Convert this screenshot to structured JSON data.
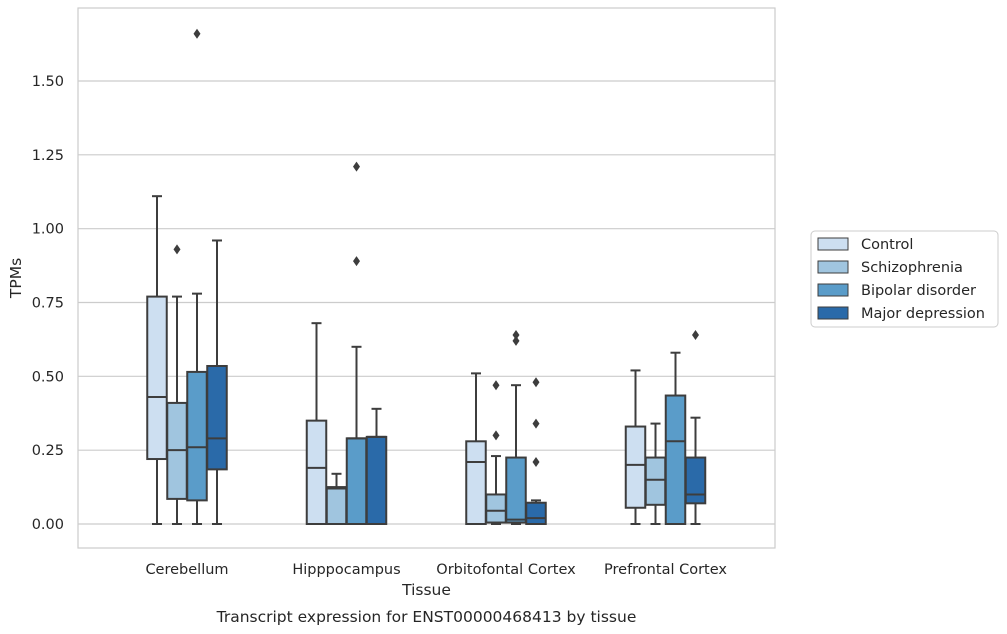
{
  "chart_data": {
    "type": "box",
    "title": "",
    "caption": "Transcript expression for ENST00000468413 by tissue",
    "xlabel": "Tissue",
    "ylabel": "TPMs",
    "ylim": [
      -0.08,
      1.74
    ],
    "yticks": [
      0.0,
      0.25,
      0.5,
      0.75,
      1.0,
      1.25,
      1.5
    ],
    "ytick_labels": [
      "0.00",
      "0.25",
      "0.50",
      "0.75",
      "1.00",
      "1.25",
      "1.50"
    ],
    "grid": true,
    "legend_position": "right",
    "categories": [
      "Cerebellum",
      "Hipppocampus",
      "Orbitofontal Cortex",
      "Prefrontal Cortex"
    ],
    "series": [
      {
        "name": "Control",
        "color": "#cddff1",
        "boxes": [
          {
            "q1": 0.22,
            "median": 0.43,
            "q3": 0.77,
            "whisker_low": 0.0,
            "whisker_high": 1.11,
            "outliers": []
          },
          {
            "q1": 0.0,
            "median": 0.19,
            "q3": 0.35,
            "whisker_low": 0.0,
            "whisker_high": 0.68,
            "outliers": []
          },
          {
            "q1": 0.0,
            "median": 0.21,
            "q3": 0.28,
            "whisker_low": 0.0,
            "whisker_high": 0.51,
            "outliers": []
          },
          {
            "q1": 0.055,
            "median": 0.2,
            "q3": 0.33,
            "whisker_low": 0.0,
            "whisker_high": 0.52,
            "outliers": []
          }
        ]
      },
      {
        "name": "Schizophrenia",
        "color": "#a0c5df",
        "boxes": [
          {
            "q1": 0.085,
            "median": 0.25,
            "q3": 0.41,
            "whisker_low": 0.0,
            "whisker_high": 0.77,
            "outliers": [
              0.93
            ]
          },
          {
            "q1": 0.0,
            "median": 0.12,
            "q3": 0.125,
            "whisker_low": 0.0,
            "whisker_high": 0.17,
            "outliers": []
          },
          {
            "q1": 0.005,
            "median": 0.045,
            "q3": 0.1,
            "whisker_low": 0.0,
            "whisker_high": 0.23,
            "outliers": [
              0.3,
              0.47
            ]
          },
          {
            "q1": 0.065,
            "median": 0.15,
            "q3": 0.225,
            "whisker_low": 0.0,
            "whisker_high": 0.34,
            "outliers": []
          }
        ]
      },
      {
        "name": "Bipolar disorder",
        "color": "#5a9cc9",
        "boxes": [
          {
            "q1": 0.08,
            "median": 0.26,
            "q3": 0.515,
            "whisker_low": 0.0,
            "whisker_high": 0.78,
            "outliers": [
              1.66
            ]
          },
          {
            "q1": 0.0,
            "median": 0.29,
            "q3": 0.29,
            "whisker_low": 0.0,
            "whisker_high": 0.6,
            "outliers": [
              0.89,
              1.21
            ]
          },
          {
            "q1": 0.005,
            "median": 0.015,
            "q3": 0.225,
            "whisker_low": 0.0,
            "whisker_high": 0.47,
            "outliers": [
              0.62,
              0.64
            ]
          },
          {
            "q1": 0.0,
            "median": 0.28,
            "q3": 0.435,
            "whisker_low": 0.0,
            "whisker_high": 0.58,
            "outliers": []
          }
        ]
      },
      {
        "name": "Major depression",
        "color": "#2a6aa9",
        "boxes": [
          {
            "q1": 0.185,
            "median": 0.29,
            "q3": 0.535,
            "whisker_low": 0.0,
            "whisker_high": 0.96,
            "outliers": []
          },
          {
            "q1": 0.0,
            "median": 0.295,
            "q3": 0.295,
            "whisker_low": 0.0,
            "whisker_high": 0.39,
            "outliers": []
          },
          {
            "q1": 0.0,
            "median": 0.02,
            "q3": 0.072,
            "whisker_low": 0.0,
            "whisker_high": 0.08,
            "outliers": [
              0.21,
              0.34,
              0.48
            ]
          },
          {
            "q1": 0.07,
            "median": 0.1,
            "q3": 0.225,
            "whisker_low": 0.0,
            "whisker_high": 0.36,
            "outliers": [
              0.64
            ]
          }
        ]
      }
    ]
  }
}
